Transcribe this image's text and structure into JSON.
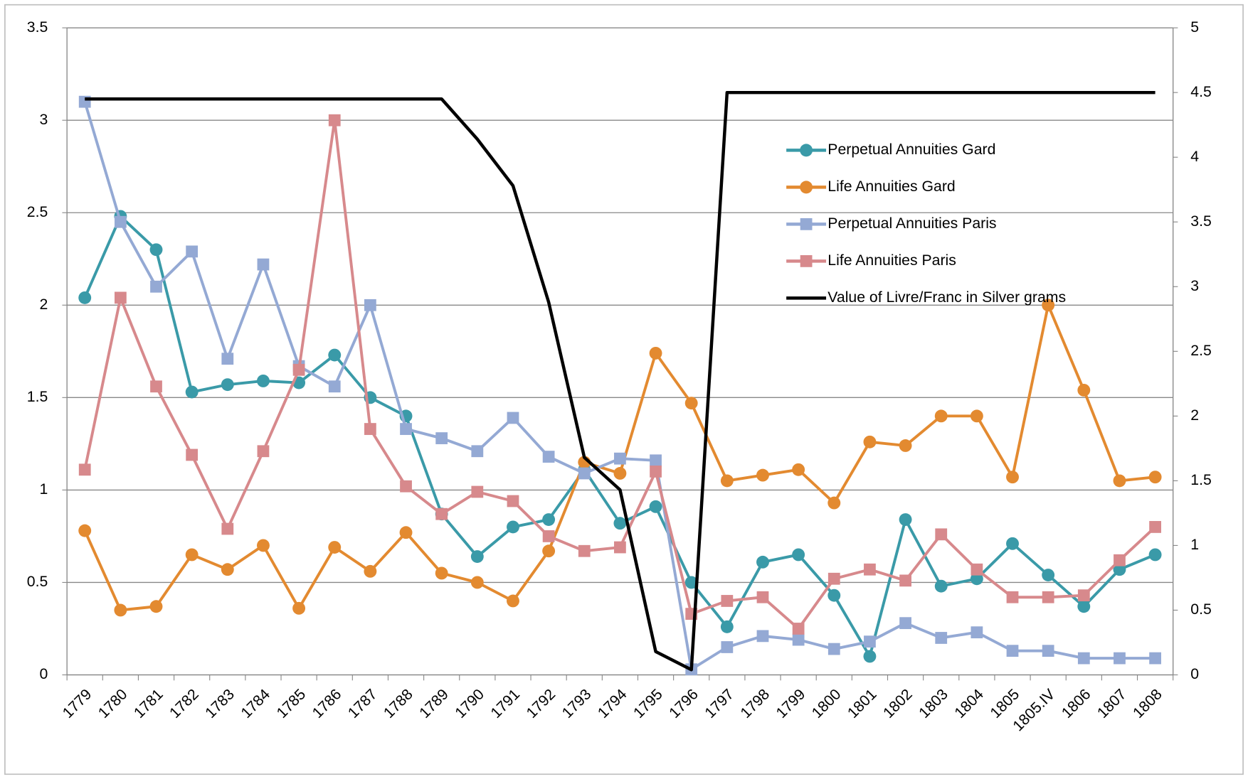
{
  "chart_data": {
    "type": "line",
    "categories": [
      "1779",
      "1780",
      "1781",
      "1782",
      "1783",
      "1784",
      "1785",
      "1786",
      "1787",
      "1788",
      "1789",
      "1790",
      "1791",
      "1792",
      "1793",
      "1794",
      "1795",
      "1796",
      "1797",
      "1798",
      "1799",
      "1800",
      "1801",
      "1802",
      "1803",
      "1804",
      "1805",
      "1805.IV",
      "1806",
      "1807",
      "1808"
    ],
    "series": [
      {
        "name": "Perpetual Annuities Gard",
        "color": "#3a9aa8",
        "marker": "circle",
        "values": [
          2.04,
          2.48,
          2.3,
          1.53,
          1.57,
          1.59,
          1.58,
          1.73,
          1.5,
          1.4,
          0.87,
          0.64,
          0.8,
          0.84,
          1.11,
          0.82,
          0.91,
          0.5,
          0.26,
          0.61,
          0.65,
          0.43,
          0.1,
          0.84,
          0.48,
          0.52,
          0.71,
          0.54,
          0.37,
          0.57,
          0.65
        ]
      },
      {
        "name": "Life Annuities Gard",
        "color": "#e38a30",
        "marker": "circle",
        "values": [
          0.78,
          0.35,
          0.37,
          0.65,
          0.57,
          0.7,
          0.36,
          0.69,
          0.56,
          0.77,
          0.55,
          0.5,
          0.4,
          0.67,
          1.15,
          1.09,
          1.74,
          1.47,
          1.05,
          1.08,
          1.11,
          0.93,
          1.26,
          1.24,
          1.4,
          1.4,
          1.07,
          2.0,
          1.54,
          1.05,
          1.07
        ]
      },
      {
        "name": "Perpetual Annuities Paris",
        "color": "#94a9d4",
        "marker": "square",
        "values": [
          3.1,
          2.45,
          2.1,
          2.29,
          1.71,
          2.22,
          1.67,
          1.56,
          2.0,
          1.33,
          1.28,
          1.21,
          1.39,
          1.18,
          1.09,
          1.17,
          1.16,
          0.03,
          0.15,
          0.21,
          0.19,
          0.14,
          0.18,
          0.28,
          0.2,
          0.23,
          0.13,
          0.13,
          0.09,
          0.09,
          0.09
        ]
      },
      {
        "name": "Life Annuities Paris",
        "color": "#d7898c",
        "marker": "square",
        "values": [
          1.11,
          2.04,
          1.56,
          1.19,
          0.79,
          1.21,
          1.65,
          3.0,
          1.33,
          1.02,
          0.87,
          0.99,
          0.94,
          0.75,
          0.67,
          0.69,
          1.1,
          0.33,
          0.4,
          0.42,
          0.25,
          0.52,
          0.57,
          0.51,
          0.76,
          0.57,
          0.42,
          0.42,
          0.43,
          0.62,
          0.8
        ]
      },
      {
        "name": "Value of Livre/Franc in Silver grams",
        "color": "#000000",
        "marker": "none",
        "axis": "y2",
        "values": [
          4.45,
          4.45,
          4.45,
          4.45,
          4.45,
          4.45,
          4.45,
          4.45,
          4.45,
          4.45,
          4.45,
          4.14,
          3.78,
          2.88,
          1.68,
          1.43,
          0.18,
          0.04,
          4.5,
          4.5,
          4.5,
          4.5,
          4.5,
          4.5,
          4.5,
          4.5,
          4.5,
          4.5,
          4.5,
          4.5,
          4.5
        ]
      }
    ],
    "ylim": [
      0,
      3.5
    ],
    "yticks": [
      0,
      0.5,
      1,
      1.5,
      2,
      2.5,
      3,
      3.5
    ],
    "y2lim": [
      0,
      5
    ],
    "y2ticks": [
      0,
      0.5,
      1,
      1.5,
      2,
      2.5,
      3,
      3.5,
      4,
      4.5,
      5
    ],
    "grid": true,
    "legend": "upper right"
  }
}
